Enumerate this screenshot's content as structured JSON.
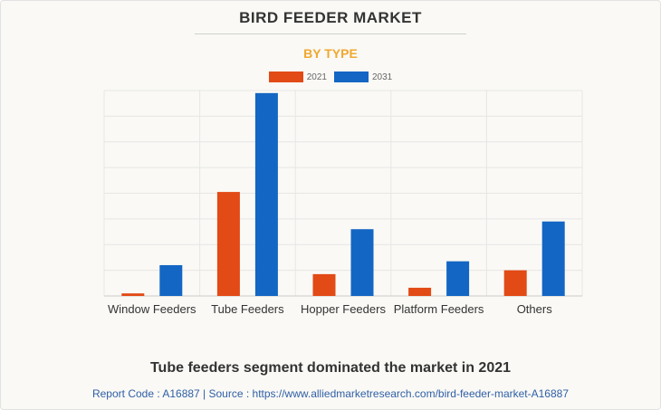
{
  "header": {
    "title": "BIRD FEEDER MARKET",
    "subtitle": "BY TYPE"
  },
  "colors": {
    "series_2021": "#e24a16",
    "series_2031": "#1366c4",
    "subtitle": "#f0a830"
  },
  "chart_data": {
    "type": "bar",
    "title": "BIRD FEEDER MARKET",
    "subtitle": "BY TYPE",
    "xlabel": "",
    "ylabel": "",
    "categories": [
      "Window Feeders",
      "Tube Feeders",
      "Hopper Feeders",
      "Platform Feeders",
      "Others"
    ],
    "series": [
      {
        "name": "2021",
        "values": [
          1.0,
          40.5,
          8.5,
          3.2,
          10.0
        ]
      },
      {
        "name": "2031",
        "values": [
          12.0,
          79.0,
          26.0,
          13.5,
          29.0
        ]
      }
    ],
    "ylim": [
      0,
      80
    ],
    "grid": true,
    "legend": "top-center",
    "y_tick_labels_shown": false
  },
  "footer": {
    "caption": "Tube feeders segment dominated the market in 2021",
    "source": "Report Code : A16887  |  Source : https://www.alliedmarketresearch.com/bird-feeder-market-A16887"
  }
}
